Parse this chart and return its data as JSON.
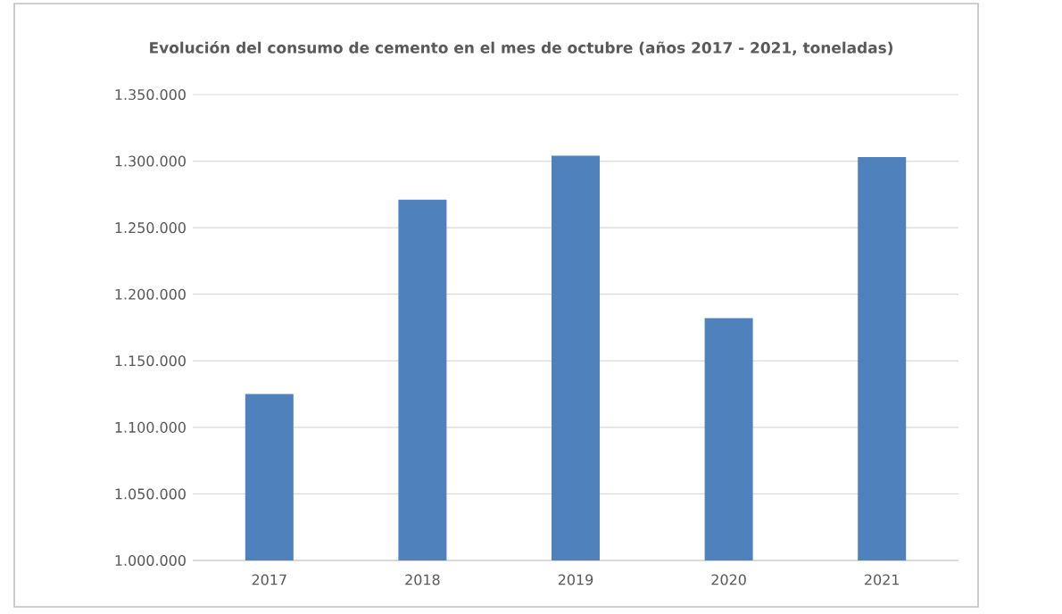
{
  "chart_data": {
    "type": "bar",
    "title": "Evolución del consumo de cemento en el mes de octubre (años 2017 - 2021, toneladas)",
    "categories": [
      "2017",
      "2018",
      "2019",
      "2020",
      "2021"
    ],
    "values": [
      1125000,
      1271000,
      1304000,
      1182000,
      1303000
    ],
    "color": "#4f81bd",
    "ylim": [
      1000000,
      1350000
    ],
    "yticks": [
      {
        "value": 1000000,
        "label": "1.000.000"
      },
      {
        "value": 1050000,
        "label": "1.050.000"
      },
      {
        "value": 1100000,
        "label": "1.100.000"
      },
      {
        "value": 1150000,
        "label": "1.150.000"
      },
      {
        "value": 1200000,
        "label": "1.200.000"
      },
      {
        "value": 1250000,
        "label": "1.250.000"
      },
      {
        "value": 1300000,
        "label": "1.300.000"
      },
      {
        "value": 1350000,
        "label": "1.350.000"
      }
    ],
    "grid": "y"
  }
}
